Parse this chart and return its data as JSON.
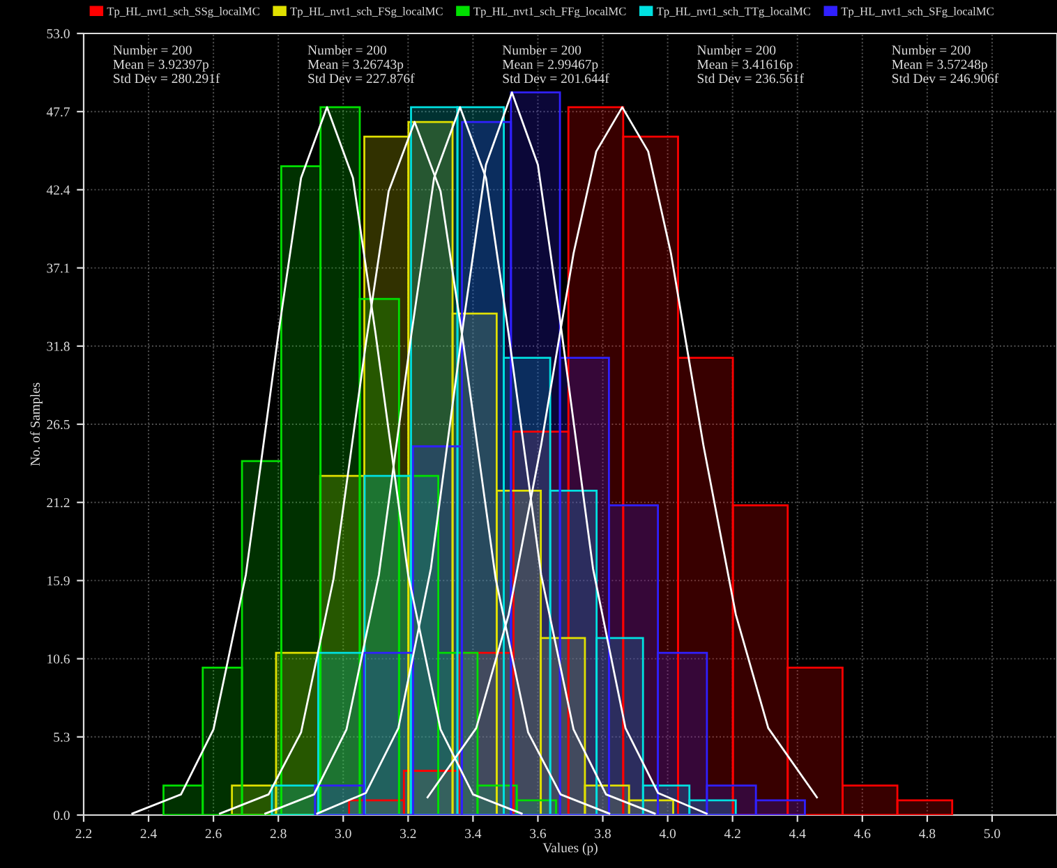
{
  "chart_data": {
    "type": "histogram",
    "xlabel": "Values (p)",
    "ylabel": "No. of Samples",
    "xlim": [
      2.2,
      5.2
    ],
    "ylim": [
      0,
      53
    ],
    "xticks": [
      {
        "value": 2.2,
        "label": "2.2"
      },
      {
        "value": 2.4,
        "label": "2.4"
      },
      {
        "value": 2.6,
        "label": "2.6"
      },
      {
        "value": 2.8,
        "label": "2.8"
      },
      {
        "value": 3.0,
        "label": "3.0"
      },
      {
        "value": 3.2,
        "label": "3.2"
      },
      {
        "value": 3.4,
        "label": "3.4"
      },
      {
        "value": 3.6,
        "label": "3.6"
      },
      {
        "value": 3.8,
        "label": "3.8"
      },
      {
        "value": 4.0,
        "label": "4.0"
      },
      {
        "value": 4.2,
        "label": "4.2"
      },
      {
        "value": 4.4,
        "label": "4.4"
      },
      {
        "value": 4.6,
        "label": "4.6"
      },
      {
        "value": 4.8,
        "label": "4.8"
      },
      {
        "value": 5.0,
        "label": "5.0"
      }
    ],
    "yticks": [
      {
        "value": 0,
        "label": "0.0"
      },
      5.3,
      10.6,
      15.9,
      21.2,
      26.5,
      31.8,
      37.1,
      42.4,
      47.7,
      {
        "value": 53,
        "label": "53.0"
      }
    ],
    "grid": true,
    "legend": "top",
    "series": [
      {
        "name": "Tp_HL_nvt1_sch_SSg_localMC",
        "color": "#ff0000",
        "bins": [
          3.018,
          3.187,
          3.356,
          3.525,
          3.694,
          3.863,
          4.032,
          4.201,
          4.37,
          4.539,
          4.708,
          4.877
        ],
        "values": [
          1,
          3,
          11,
          26,
          48,
          46,
          31,
          21,
          10,
          2,
          1
        ]
      },
      {
        "name": "Tp_HL_nvt1_sch_FSg_localMC",
        "color": "#e0e000",
        "bins": [
          2.657,
          2.793,
          2.929,
          3.065,
          3.201,
          3.337,
          3.473,
          3.609,
          3.745,
          3.881,
          4.017
        ],
        "values": [
          2,
          11,
          23,
          46,
          47,
          34,
          22,
          12,
          2,
          1
        ]
      },
      {
        "name": "Tp_HL_nvt1_sch_FFg_localMC",
        "color": "#00e000",
        "bins": [
          2.446,
          2.567,
          2.688,
          2.809,
          2.93,
          3.051,
          3.172,
          3.293,
          3.414,
          3.535,
          3.656
        ],
        "values": [
          2,
          10,
          24,
          44,
          48,
          35,
          23,
          11,
          2,
          1
        ]
      },
      {
        "name": "Tp_HL_nvt1_sch_TTg_localMC",
        "color": "#00e0e0",
        "bins": [
          2.78,
          2.923,
          3.066,
          3.209,
          3.352,
          3.495,
          3.638,
          3.781,
          3.924,
          4.067,
          4.21
        ],
        "values": [
          2,
          11,
          23,
          48,
          48,
          31,
          22,
          12,
          2,
          1
        ]
      },
      {
        "name": "Tp_HL_nvt1_sch_SFg_localMC",
        "color": "#3020ff",
        "bins": [
          2.913,
          3.064,
          3.215,
          3.366,
          3.517,
          3.668,
          3.819,
          3.97,
          4.121,
          4.272,
          4.423
        ],
        "values": [
          2,
          11,
          25,
          47,
          49,
          31,
          21,
          11,
          2,
          1
        ]
      },
      {
        "type": "line",
        "color": "#ffffff",
        "x": [
          3.26,
          3.41,
          3.51,
          3.61,
          3.71,
          3.78,
          3.86,
          3.94,
          4.01,
          4.11,
          4.21,
          4.31,
          4.46
        ],
        "values": [
          1.2,
          5.9,
          13.6,
          25.1,
          38.1,
          45,
          48,
          45,
          38.1,
          25.1,
          13.6,
          5.9,
          1.2
        ]
      },
      {
        "type": "line",
        "color": "#ffffff",
        "x": [
          2.62,
          2.77,
          2.87,
          2.97,
          3.07,
          3.14,
          3.22,
          3.3,
          3.37,
          3.47,
          3.57,
          3.67,
          3.82
        ],
        "values": [
          0.1,
          1.4,
          5.6,
          16,
          32,
          42.3,
          47,
          42.3,
          32,
          16,
          5.6,
          1.4,
          0.1
        ]
      },
      {
        "type": "line",
        "color": "#ffffff",
        "x": [
          2.35,
          2.5,
          2.6,
          2.7,
          2.8,
          2.87,
          2.95,
          3.03,
          3.1,
          3.2,
          3.3,
          3.4,
          3.55
        ],
        "values": [
          0.1,
          1.4,
          5.8,
          16.3,
          32.6,
          43.2,
          48,
          43.2,
          32.6,
          16.3,
          5.8,
          1.4,
          0.1
        ]
      },
      {
        "type": "line",
        "color": "#ffffff",
        "x": [
          2.76,
          2.91,
          3.01,
          3.11,
          3.21,
          3.28,
          3.36,
          3.44,
          3.51,
          3.61,
          3.71,
          3.81,
          3.96
        ],
        "values": [
          0.1,
          1.4,
          5.8,
          16.3,
          32.6,
          43.2,
          48,
          43.2,
          32.6,
          16.3,
          5.8,
          1.4,
          0.1
        ]
      },
      {
        "type": "line",
        "color": "#ffffff",
        "x": [
          2.92,
          3.07,
          3.17,
          3.27,
          3.37,
          3.44,
          3.52,
          3.6,
          3.67,
          3.77,
          3.87,
          3.97,
          4.12
        ],
        "values": [
          0.1,
          1.5,
          5.9,
          16.7,
          33.3,
          44.1,
          49,
          44.1,
          33.3,
          16.7,
          5.9,
          1.5,
          0.1
        ]
      }
    ],
    "annotations": [
      "Number = 200\nMean = 3.92397p\nStd Dev = 280.291f",
      "Number = 200\nMean = 3.26743p\nStd Dev = 227.876f",
      "Number = 200\nMean = 2.99467p\nStd Dev = 201.644f",
      "Number = 200\nMean = 3.41616p\nStd Dev = 236.561f",
      "Number = 200\nMean = 3.57248p\nStd Dev = 246.906f"
    ]
  }
}
